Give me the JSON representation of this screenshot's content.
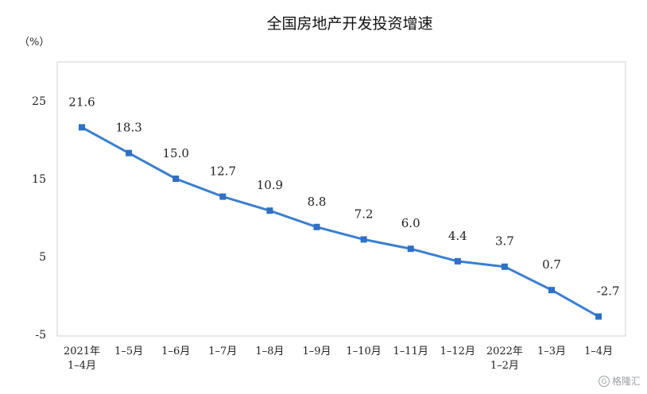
{
  "chart_data": {
    "type": "line",
    "title": "全国房地产开发投资增速",
    "ylabel": "（%）",
    "ylim": [
      -5,
      30
    ],
    "yticks": [
      25,
      15,
      5,
      -5
    ],
    "grid": false,
    "categories": [
      [
        "2021年",
        "1–4月"
      ],
      [
        "1–5月"
      ],
      [
        "1–6月"
      ],
      [
        "1–7月"
      ],
      [
        "1–8月"
      ],
      [
        "1–9月"
      ],
      [
        "1–10月"
      ],
      [
        "1–11月"
      ],
      [
        "1–12月"
      ],
      [
        "2022年",
        "1–2月"
      ],
      [
        "1–3月"
      ],
      [
        "1–4月"
      ]
    ],
    "series": [
      {
        "values": [
          21.6,
          18.3,
          15.0,
          12.7,
          10.9,
          8.8,
          7.2,
          6.0,
          4.4,
          3.7,
          0.7,
          -2.7
        ],
        "labels": [
          "21.6",
          "18.3",
          "15.0",
          "12.7",
          "10.9",
          "8.8",
          "7.2",
          "6.0",
          "4.4",
          "3.7",
          "0.7",
          "-2.7"
        ],
        "color": "#3b7fd0"
      }
    ]
  },
  "watermark": {
    "text": "格隆汇",
    "icon": "G"
  }
}
